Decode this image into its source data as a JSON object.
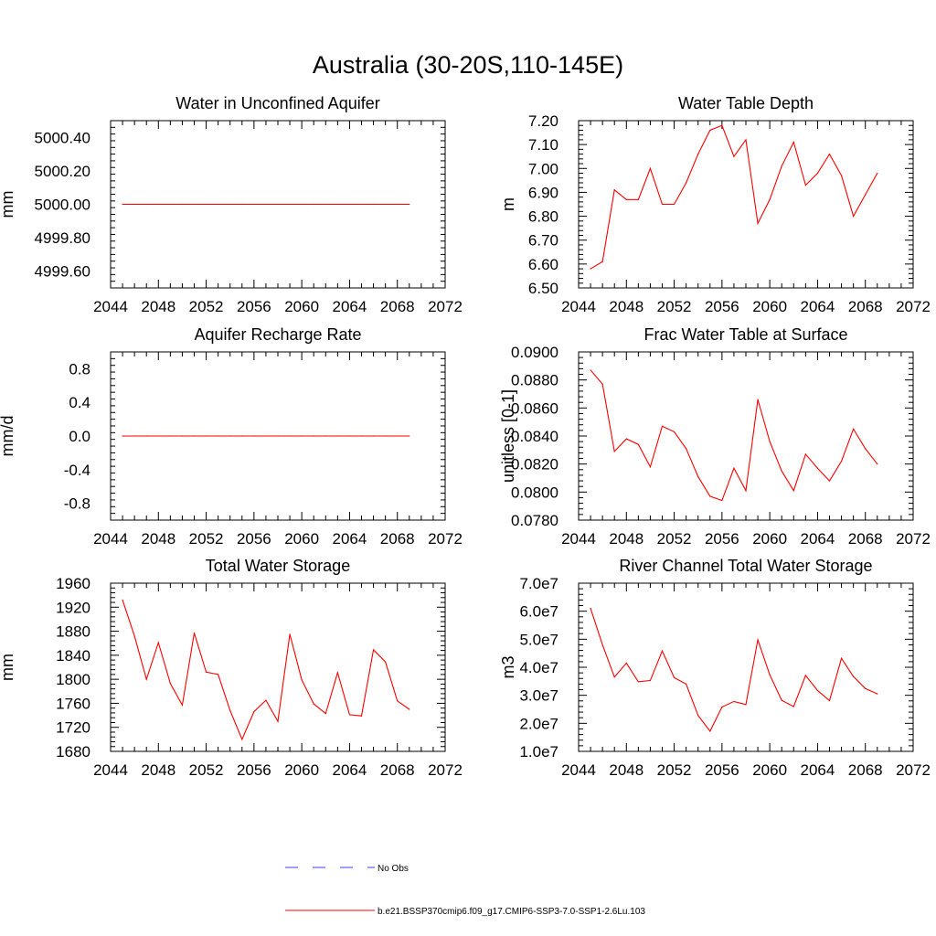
{
  "title": "Australia (30-20S,110-145E)",
  "colors": {
    "model": "#ff0000",
    "obs": "#3c3cff",
    "frame": "#000000"
  },
  "legend": {
    "obs_label": "No Obs",
    "model_label": "b.e21.BSSP370cmip6.f09_g17.CMIP6-SSP3-7.0-SSP1-2.6Lu.103"
  },
  "chart_data": [
    {
      "type": "line",
      "title": "Water in Unconfined Aquifer",
      "ylabel": "mm",
      "xlim": [
        2044,
        2072
      ],
      "ylim": [
        4999.5,
        5000.5
      ],
      "xticks": [
        "2044",
        "2048",
        "2052",
        "2056",
        "2060",
        "2064",
        "2068",
        "2072"
      ],
      "yticks": [
        4999.6,
        4999.8,
        5000.0,
        5000.2,
        5000.4
      ],
      "ytick_labels": [
        "4999.60",
        "4999.80",
        "5000.00",
        "5000.20",
        "5000.40"
      ],
      "x": [
        2045,
        2046,
        2047,
        2048,
        2049,
        2050,
        2051,
        2052,
        2053,
        2054,
        2055,
        2056,
        2057,
        2058,
        2059,
        2060,
        2061,
        2062,
        2063,
        2064,
        2065,
        2066,
        2067,
        2068,
        2069
      ],
      "values": [
        5000,
        5000,
        5000,
        5000,
        5000,
        5000,
        5000,
        5000,
        5000,
        5000,
        5000,
        5000,
        5000,
        5000,
        5000,
        5000,
        5000,
        5000,
        5000,
        5000,
        5000,
        5000,
        5000,
        5000,
        5000
      ]
    },
    {
      "type": "line",
      "title": "Water Table Depth",
      "ylabel": "m",
      "xlim": [
        2044,
        2072
      ],
      "ylim": [
        6.5,
        7.2
      ],
      "xticks": [
        "2044",
        "2048",
        "2052",
        "2056",
        "2060",
        "2064",
        "2068",
        "2072"
      ],
      "yticks": [
        6.5,
        6.6,
        6.7,
        6.8,
        6.9,
        7.0,
        7.1,
        7.2
      ],
      "ytick_labels": [
        "6.50",
        "6.60",
        "6.70",
        "6.80",
        "6.90",
        "7.00",
        "7.10",
        "7.20"
      ],
      "x": [
        2045,
        2046,
        2047,
        2048,
        2049,
        2050,
        2051,
        2052,
        2053,
        2054,
        2055,
        2056,
        2057,
        2058,
        2059,
        2060,
        2061,
        2062,
        2063,
        2064,
        2065,
        2066,
        2067,
        2068,
        2069
      ],
      "values": [
        6.58,
        6.61,
        6.91,
        6.87,
        6.87,
        7.0,
        6.85,
        6.85,
        6.94,
        7.06,
        7.16,
        7.18,
        7.05,
        7.12,
        6.77,
        6.87,
        7.01,
        7.11,
        6.93,
        6.98,
        7.06,
        6.97,
        6.8,
        6.89,
        6.98
      ]
    },
    {
      "type": "line",
      "title": "Aquifer Recharge Rate",
      "ylabel": "mm/d",
      "xlim": [
        2044,
        2072
      ],
      "ylim": [
        -1.0,
        1.0
      ],
      "xticks": [
        "2044",
        "2048",
        "2052",
        "2056",
        "2060",
        "2064",
        "2068",
        "2072"
      ],
      "yticks": [
        -0.8,
        -0.4,
        0.0,
        0.4,
        0.8
      ],
      "ytick_labels": [
        "-0.8",
        "-0.4",
        "0.0",
        "0.4",
        "0.8"
      ],
      "x": [
        2045,
        2046,
        2047,
        2048,
        2049,
        2050,
        2051,
        2052,
        2053,
        2054,
        2055,
        2056,
        2057,
        2058,
        2059,
        2060,
        2061,
        2062,
        2063,
        2064,
        2065,
        2066,
        2067,
        2068,
        2069
      ],
      "values": [
        0,
        0,
        0,
        0,
        0,
        0,
        0,
        0,
        0,
        0,
        0,
        0,
        0,
        0,
        0,
        0,
        0,
        0,
        0,
        0,
        0,
        0,
        0,
        0,
        0
      ]
    },
    {
      "type": "line",
      "title": "Frac Water Table at Surface",
      "ylabel": "unitless [0-1]",
      "xlim": [
        2044,
        2072
      ],
      "ylim": [
        0.078,
        0.09
      ],
      "xticks": [
        "2044",
        "2048",
        "2052",
        "2056",
        "2060",
        "2064",
        "2068",
        "2072"
      ],
      "yticks": [
        0.078,
        0.08,
        0.082,
        0.084,
        0.086,
        0.088,
        0.09
      ],
      "ytick_labels": [
        "0.0780",
        "0.0800",
        "0.0820",
        "0.0840",
        "0.0860",
        "0.0880",
        "0.0900"
      ],
      "x": [
        2045,
        2046,
        2047,
        2048,
        2049,
        2050,
        2051,
        2052,
        2053,
        2054,
        2055,
        2056,
        2057,
        2058,
        2059,
        2060,
        2061,
        2062,
        2063,
        2064,
        2065,
        2066,
        2067,
        2068,
        2069
      ],
      "values": [
        0.0887,
        0.0877,
        0.0829,
        0.0838,
        0.0834,
        0.0818,
        0.0847,
        0.0843,
        0.0831,
        0.0811,
        0.0797,
        0.0794,
        0.0817,
        0.0801,
        0.0866,
        0.0836,
        0.0815,
        0.0801,
        0.0827,
        0.0817,
        0.0808,
        0.0822,
        0.0845,
        0.0831,
        0.082
      ]
    },
    {
      "type": "line",
      "title": "Total Water Storage",
      "ylabel": "mm",
      "xlim": [
        2044,
        2072
      ],
      "ylim": [
        1680,
        1960
      ],
      "xticks": [
        "2044",
        "2048",
        "2052",
        "2056",
        "2060",
        "2064",
        "2068",
        "2072"
      ],
      "yticks": [
        1680,
        1720,
        1760,
        1800,
        1840,
        1880,
        1920,
        1960
      ],
      "ytick_labels": [
        "1680",
        "1720",
        "1760",
        "1800",
        "1840",
        "1880",
        "1920",
        "1960"
      ],
      "x": [
        2045,
        2046,
        2047,
        2048,
        2049,
        2050,
        2051,
        2052,
        2053,
        2054,
        2055,
        2056,
        2057,
        2058,
        2059,
        2060,
        2061,
        2062,
        2063,
        2064,
        2065,
        2066,
        2067,
        2068,
        2069
      ],
      "values": [
        1932,
        1872,
        1800,
        1861,
        1793,
        1757,
        1877,
        1812,
        1808,
        1748,
        1700,
        1746,
        1765,
        1730,
        1875,
        1799,
        1759,
        1743,
        1811,
        1741,
        1739,
        1849,
        1829,
        1764,
        1750
      ]
    },
    {
      "type": "line",
      "title": "River Channel Total Water Storage",
      "ylabel": "m3",
      "xlim": [
        2044,
        2072
      ],
      "ylim": [
        10000000,
        70000000
      ],
      "xticks": [
        "2044",
        "2048",
        "2052",
        "2056",
        "2060",
        "2064",
        "2068",
        "2072"
      ],
      "yticks": [
        10000000,
        20000000,
        30000000,
        40000000,
        50000000,
        60000000,
        70000000
      ],
      "ytick_labels": [
        "1.0e7",
        "2.0e7",
        "3.0e7",
        "4.0e7",
        "5.0e7",
        "6.0e7",
        "7.0e7"
      ],
      "x": [
        2045,
        2046,
        2047,
        2048,
        2049,
        2050,
        2051,
        2052,
        2053,
        2054,
        2055,
        2056,
        2057,
        2058,
        2059,
        2060,
        2061,
        2062,
        2063,
        2064,
        2065,
        2066,
        2067,
        2068,
        2069
      ],
      "values": [
        61000000,
        48000000,
        36500000,
        41500000,
        34800000,
        35300000,
        45800000,
        36300000,
        34000000,
        22800000,
        17200000,
        25800000,
        27800000,
        26700000,
        49800000,
        37300000,
        28200000,
        26000000,
        37100000,
        31700000,
        28100000,
        43200000,
        36700000,
        32400000,
        30500000
      ]
    }
  ]
}
